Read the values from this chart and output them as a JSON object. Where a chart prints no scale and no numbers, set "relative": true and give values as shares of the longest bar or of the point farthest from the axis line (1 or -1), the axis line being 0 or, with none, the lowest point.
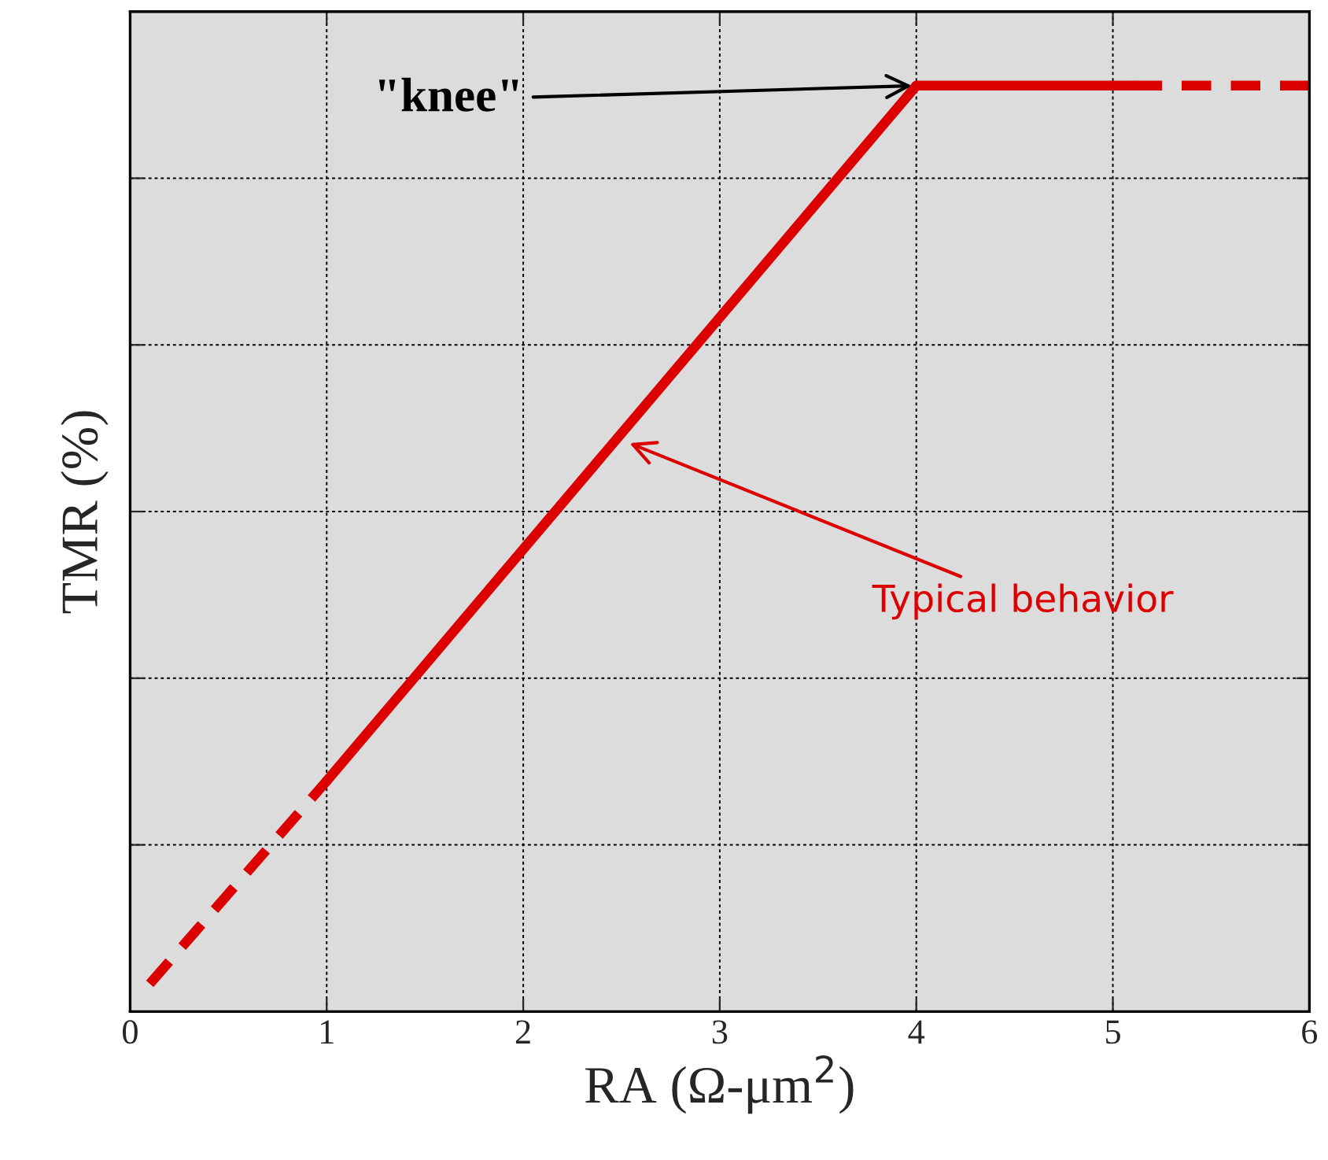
{
  "chart_data": {
    "type": "line",
    "relative": true,
    "xlabel": "RA (Ω-μm$^{2}$)",
    "ylabel": "TMR (%)",
    "xlim": [
      0,
      6
    ],
    "xticks": [
      0,
      1,
      2,
      3,
      4,
      5,
      6
    ],
    "grid": true,
    "marker": "none",
    "series": [
      {
        "x": [
          0.1,
          1
        ],
        "values": [
          0.03,
          0.249
        ],
        "color": "#dd0000",
        "line_style": "dashed"
      },
      {
        "x": [
          1,
          4
        ],
        "values": [
          0.249,
          1
        ],
        "color": "#dd0000",
        "line_style": "solid"
      },
      {
        "x": [
          4,
          5.1
        ],
        "values": [
          1,
          1
        ],
        "color": "#dd0000",
        "line_style": "solid"
      },
      {
        "x": [
          5.1,
          6
        ],
        "values": [
          1,
          1
        ],
        "color": "#dd0000",
        "line_style": "dashed"
      }
    ],
    "annotations": [
      {
        "text": "\"knee\"",
        "x": 4,
        "y": 1
      },
      "Typical behavior"
    ]
  }
}
